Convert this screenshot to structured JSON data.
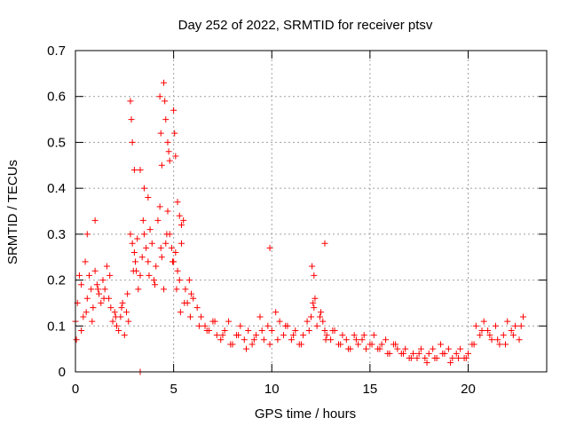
{
  "chart_data": {
    "type": "scatter",
    "title": "Day 252 of 2022, SRMTID for receiver ptsv",
    "xlabel": "GPS time / hours",
    "ylabel": "SRMTID / TECUs",
    "xlim": [
      0,
      24
    ],
    "ylim": [
      0,
      0.7
    ],
    "xticks": [
      "0",
      "5",
      "10",
      "15",
      "20"
    ],
    "xtick_values": [
      0,
      5,
      10,
      15,
      20
    ],
    "yticks": [
      "0",
      "0.1",
      "0.2",
      "0.3",
      "0.4",
      "0.5",
      "0.6",
      "0.7"
    ],
    "ytick_values": [
      0,
      0.1,
      0.2,
      0.3,
      0.4,
      0.5,
      0.6,
      0.7
    ],
    "grid": true,
    "marker": "+",
    "color": "#ff0000",
    "series": [
      {
        "name": "SRMTID",
        "x": [
          0.0,
          0.1,
          0.2,
          0.3,
          0.4,
          0.5,
          0.6,
          0.7,
          0.8,
          0.9,
          1.0,
          1.1,
          1.2,
          1.3,
          1.4,
          1.5,
          1.6,
          1.7,
          1.8,
          1.9,
          2.0,
          2.1,
          2.2,
          2.3,
          2.4,
          2.5,
          2.6,
          2.7,
          2.8,
          2.9,
          3.0,
          3.1,
          3.2,
          3.3,
          3.4,
          3.5,
          3.6,
          3.7,
          3.8,
          3.9,
          4.0,
          4.1,
          4.2,
          4.3,
          4.4,
          4.5,
          4.6,
          4.7,
          4.8,
          4.9,
          5.0,
          5.1,
          5.2,
          5.3,
          5.4,
          5.5,
          5.6,
          5.7,
          5.8,
          5.9,
          6.0,
          6.2,
          6.4,
          6.6,
          6.8,
          7.0,
          7.2,
          7.4,
          7.6,
          7.8,
          8.0,
          8.2,
          8.4,
          8.6,
          8.8,
          9.0,
          9.2,
          9.4,
          9.6,
          9.8,
          10.0,
          10.2,
          10.4,
          10.6,
          10.8,
          11.0,
          11.2,
          11.4,
          11.6,
          11.8,
          12.0,
          12.1,
          12.2,
          12.3,
          12.5,
          12.6,
          12.7,
          12.8,
          13.0,
          13.2,
          13.4,
          13.6,
          13.8,
          14.0,
          14.2,
          14.4,
          14.6,
          14.8,
          15.0,
          15.2,
          15.4,
          15.6,
          15.8,
          16.0,
          16.2,
          16.4,
          16.6,
          16.8,
          17.0,
          17.2,
          17.4,
          17.6,
          17.8,
          18.0,
          18.2,
          18.4,
          18.6,
          18.8,
          19.0,
          19.2,
          19.4,
          19.6,
          19.8,
          20.0,
          20.2,
          20.4,
          20.6,
          20.8,
          21.0,
          21.2,
          21.4,
          21.6,
          21.8,
          22.0,
          22.2,
          22.4,
          22.6,
          22.8,
          0.05,
          0.3,
          0.55,
          0.85,
          1.15,
          1.45,
          1.75,
          2.05,
          2.35,
          2.65,
          2.95,
          3.05,
          3.15,
          3.45,
          3.75,
          4.05,
          4.35,
          4.65,
          4.95,
          5.15,
          5.35,
          5.55,
          5.85,
          6.3,
          6.7,
          7.1,
          7.5,
          7.9,
          8.3,
          8.7,
          9.1,
          9.5,
          9.9,
          10.3,
          10.7,
          11.1,
          11.5,
          11.9,
          12.15,
          12.45,
          12.75,
          13.1,
          13.5,
          13.9,
          14.3,
          14.7,
          15.1,
          15.5,
          15.9,
          16.3,
          16.7,
          17.1,
          17.5,
          17.9,
          18.3,
          18.7,
          19.1,
          19.5,
          19.9,
          20.3,
          20.7,
          21.1,
          21.5,
          21.9,
          22.3,
          22.7,
          2.8,
          2.85,
          2.9,
          3.0,
          4.5,
          4.55,
          4.6,
          4.7,
          4.75,
          4.8,
          5.0,
          5.05,
          5.1,
          4.3,
          4.35,
          4.4,
          3.3,
          3.5,
          3.7,
          5.2,
          5.3,
          5.4,
          9.9,
          12.7,
          12.05,
          12.15,
          1.0,
          0.6,
          3.3
        ],
        "y": [
          0.11,
          0.15,
          0.21,
          0.19,
          0.12,
          0.24,
          0.16,
          0.21,
          0.18,
          0.14,
          0.22,
          0.19,
          0.17,
          0.15,
          0.2,
          0.18,
          0.23,
          0.16,
          0.14,
          0.11,
          0.13,
          0.1,
          0.09,
          0.12,
          0.15,
          0.08,
          0.13,
          0.11,
          0.3,
          0.28,
          0.26,
          0.22,
          0.18,
          0.21,
          0.25,
          0.3,
          0.27,
          0.24,
          0.31,
          0.28,
          0.2,
          0.23,
          0.33,
          0.36,
          0.25,
          0.18,
          0.28,
          0.35,
          0.3,
          0.27,
          0.24,
          0.26,
          0.22,
          0.2,
          0.28,
          0.33,
          0.18,
          0.15,
          0.2,
          0.17,
          0.16,
          0.14,
          0.12,
          0.1,
          0.09,
          0.11,
          0.08,
          0.07,
          0.09,
          0.11,
          0.06,
          0.08,
          0.1,
          0.07,
          0.09,
          0.06,
          0.08,
          0.12,
          0.07,
          0.1,
          0.09,
          0.13,
          0.11,
          0.08,
          0.1,
          0.07,
          0.09,
          0.06,
          0.08,
          0.11,
          0.12,
          0.15,
          0.16,
          0.1,
          0.13,
          0.11,
          0.09,
          0.08,
          0.07,
          0.09,
          0.06,
          0.08,
          0.07,
          0.05,
          0.08,
          0.06,
          0.07,
          0.05,
          0.06,
          0.08,
          0.05,
          0.06,
          0.07,
          0.04,
          0.06,
          0.05,
          0.04,
          0.05,
          0.03,
          0.04,
          0.03,
          0.05,
          0.03,
          0.04,
          0.05,
          0.03,
          0.06,
          0.04,
          0.05,
          0.03,
          0.04,
          0.05,
          0.03,
          0.04,
          0.06,
          0.1,
          0.08,
          0.11,
          0.09,
          0.07,
          0.1,
          0.06,
          0.08,
          0.11,
          0.09,
          0.1,
          0.07,
          0.12,
          0.07,
          0.09,
          0.13,
          0.11,
          0.18,
          0.16,
          0.21,
          0.12,
          0.14,
          0.17,
          0.22,
          0.24,
          0.29,
          0.33,
          0.21,
          0.19,
          0.27,
          0.3,
          0.24,
          0.18,
          0.13,
          0.15,
          0.12,
          0.1,
          0.09,
          0.11,
          0.08,
          0.06,
          0.08,
          0.05,
          0.07,
          0.09,
          0.06,
          0.07,
          0.1,
          0.08,
          0.06,
          0.09,
          0.14,
          0.12,
          0.07,
          0.09,
          0.06,
          0.05,
          0.07,
          0.08,
          0.06,
          0.05,
          0.04,
          0.06,
          0.04,
          0.03,
          0.04,
          0.02,
          0.03,
          0.04,
          0.02,
          0.03,
          0.03,
          0.06,
          0.09,
          0.08,
          0.07,
          0.06,
          0.08,
          0.1,
          0.59,
          0.55,
          0.5,
          0.44,
          0.63,
          0.59,
          0.55,
          0.5,
          0.48,
          0.46,
          0.57,
          0.52,
          0.47,
          0.6,
          0.52,
          0.45,
          0.44,
          0.4,
          0.38,
          0.37,
          0.34,
          0.32,
          0.27,
          0.28,
          0.23,
          0.21,
          0.33,
          0.3,
          0.0
        ]
      }
    ]
  }
}
